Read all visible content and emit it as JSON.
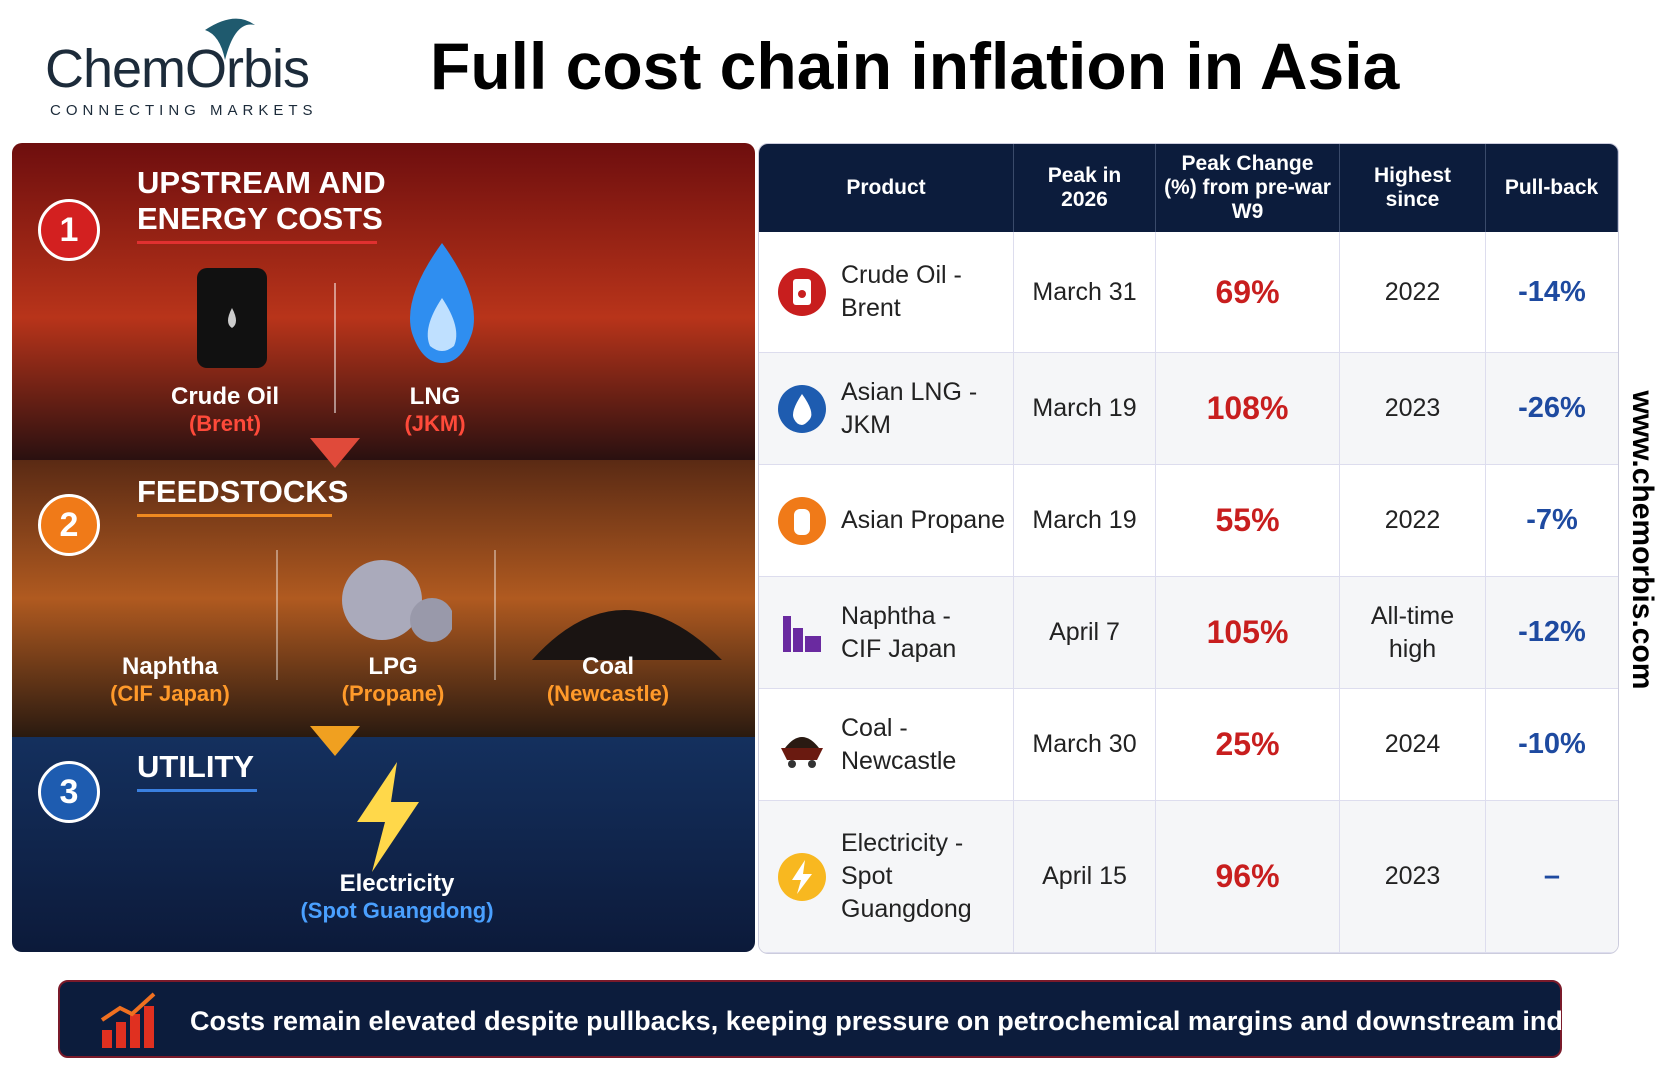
{
  "header": {
    "logo": "ChemOrbis",
    "tagline": "CONNECTING MARKETS",
    "title": "Full cost chain inflation in Asia"
  },
  "stages": [
    {
      "number": "1",
      "title": "UPSTREAM AND ENERGY COSTS",
      "items": [
        {
          "name": "Crude Oil",
          "sub": "(Brent)"
        },
        {
          "name": "LNG",
          "sub": "(JKM)"
        }
      ]
    },
    {
      "number": "2",
      "title": "FEEDSTOCKS",
      "items": [
        {
          "name": "Naphtha",
          "sub": "(CIF Japan)"
        },
        {
          "name": "LPG",
          "sub": "(Propane)"
        },
        {
          "name": "Coal",
          "sub": "(Newcastle)"
        }
      ]
    },
    {
      "number": "3",
      "title": "UTILITY",
      "items": [
        {
          "name": "Electricity",
          "sub": "(Spot Guangdong)"
        }
      ]
    }
  ],
  "table": {
    "headers": [
      "Product",
      "Peak in 2026",
      "Peak Change (%) from pre-war W9",
      "Highest since",
      "Pull-back"
    ],
    "rows": [
      [
        [
          "Crude Oil - Brent"
        ],
        "March 31",
        "69%",
        "2022",
        "-14%"
      ],
      [
        [
          "Asian LNG - JKM"
        ],
        "March 19",
        "108%",
        "2023",
        "-26%"
      ],
      [
        [
          "Asian Propane"
        ],
        "March 19",
        "55%",
        "2022",
        "-7%"
      ],
      [
        [
          "Naphtha -",
          "CIF Japan"
        ],
        "April 7",
        "105%",
        "All-time high",
        "-12%"
      ],
      [
        [
          "Coal -",
          "Newcastle"
        ],
        "March 30",
        "25%",
        "2024",
        "-10%"
      ],
      [
        [
          "Electricity -",
          "Spot Guangdong"
        ],
        "April 15",
        "96%",
        "2023",
        "–"
      ]
    ]
  },
  "footer": "Costs remain elevated despite pullbacks, keeping pressure on petrochemical margins and downstream industries.",
  "website": "www.chemorbis.com"
}
